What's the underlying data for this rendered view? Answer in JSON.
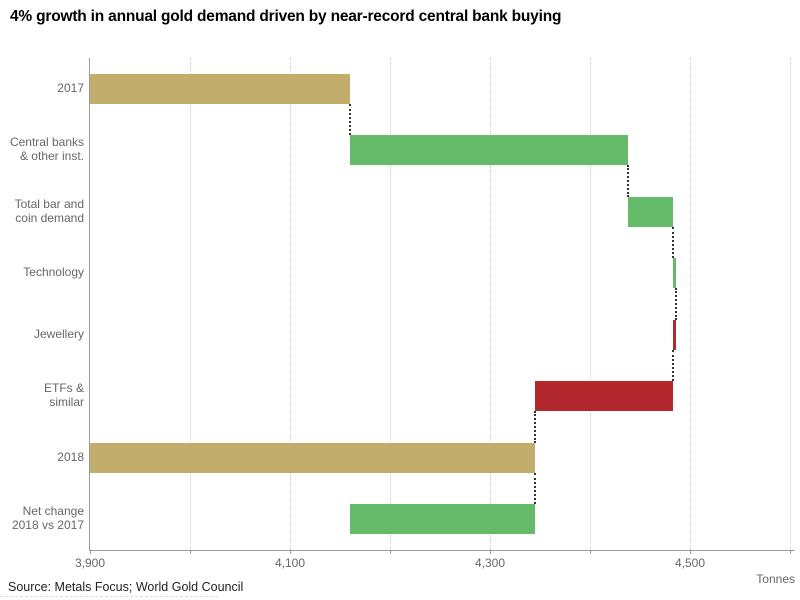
{
  "page": {
    "title": "4% growth in annual gold demand driven by near-record central bank buying",
    "source": "Source: Metals Focus; World Gold Council",
    "unit_label": "Tonnes"
  },
  "colors": {
    "total": "#c3ad6d",
    "increase": "#66bb6a",
    "decrease": "#b2282c",
    "axis": "#9b9b9b",
    "gridline": "#cccccc",
    "connector": "#333333",
    "tick_label": "#666666",
    "row_label": "#666666"
  },
  "chart_data": {
    "type": "bar",
    "subtype": "horizontal-waterfall",
    "title": "4% growth in annual gold demand driven by near-record central bank buying",
    "xlabel": "Tonnes",
    "ylabel": "",
    "grid": true,
    "legend": false,
    "axis": {
      "min": 3900,
      "max": 4600,
      "grid_step": 100,
      "minor_tick_step": 100,
      "ticks": [
        {
          "value": 3900,
          "label": "3,900"
        },
        {
          "value": 4100,
          "label": "4,100"
        },
        {
          "value": 4300,
          "label": "4,300"
        },
        {
          "value": 4500,
          "label": "4,500"
        }
      ]
    },
    "rows": [
      {
        "label": "2017",
        "label_lines": [
          "2017"
        ],
        "kind": "total",
        "from": null,
        "to": 4160,
        "value": 4160
      },
      {
        "label": "Central banks & other inst.",
        "label_lines": [
          "Central banks",
          "& other inst."
        ],
        "kind": "increase",
        "from": 4160,
        "to": 4438,
        "value": 278
      },
      {
        "label": "Total bar and coin demand",
        "label_lines": [
          "Total bar and",
          "coin demand"
        ],
        "kind": "increase",
        "from": 4438,
        "to": 4483,
        "value": 45
      },
      {
        "label": "Technology",
        "label_lines": [
          "Technology"
        ],
        "kind": "increase",
        "from": 4483,
        "to": 4486,
        "value": 3
      },
      {
        "label": "Jewellery",
        "label_lines": [
          "Jewellery"
        ],
        "kind": "decrease",
        "from": 4486,
        "to": 4483,
        "value": -3
      },
      {
        "label": "ETFs & similar",
        "label_lines": [
          "ETFs &",
          "similar"
        ],
        "kind": "decrease",
        "from": 4483,
        "to": 4345,
        "value": -138
      },
      {
        "label": "2018",
        "label_lines": [
          "2018"
        ],
        "kind": "total",
        "from": null,
        "to": 4345,
        "value": 4345
      },
      {
        "label": "Net change 2018 vs 2017",
        "label_lines": [
          "Net change",
          "2018 vs 2017"
        ],
        "kind": "increase",
        "from": 4160,
        "to": 4345,
        "value": 185
      }
    ]
  }
}
